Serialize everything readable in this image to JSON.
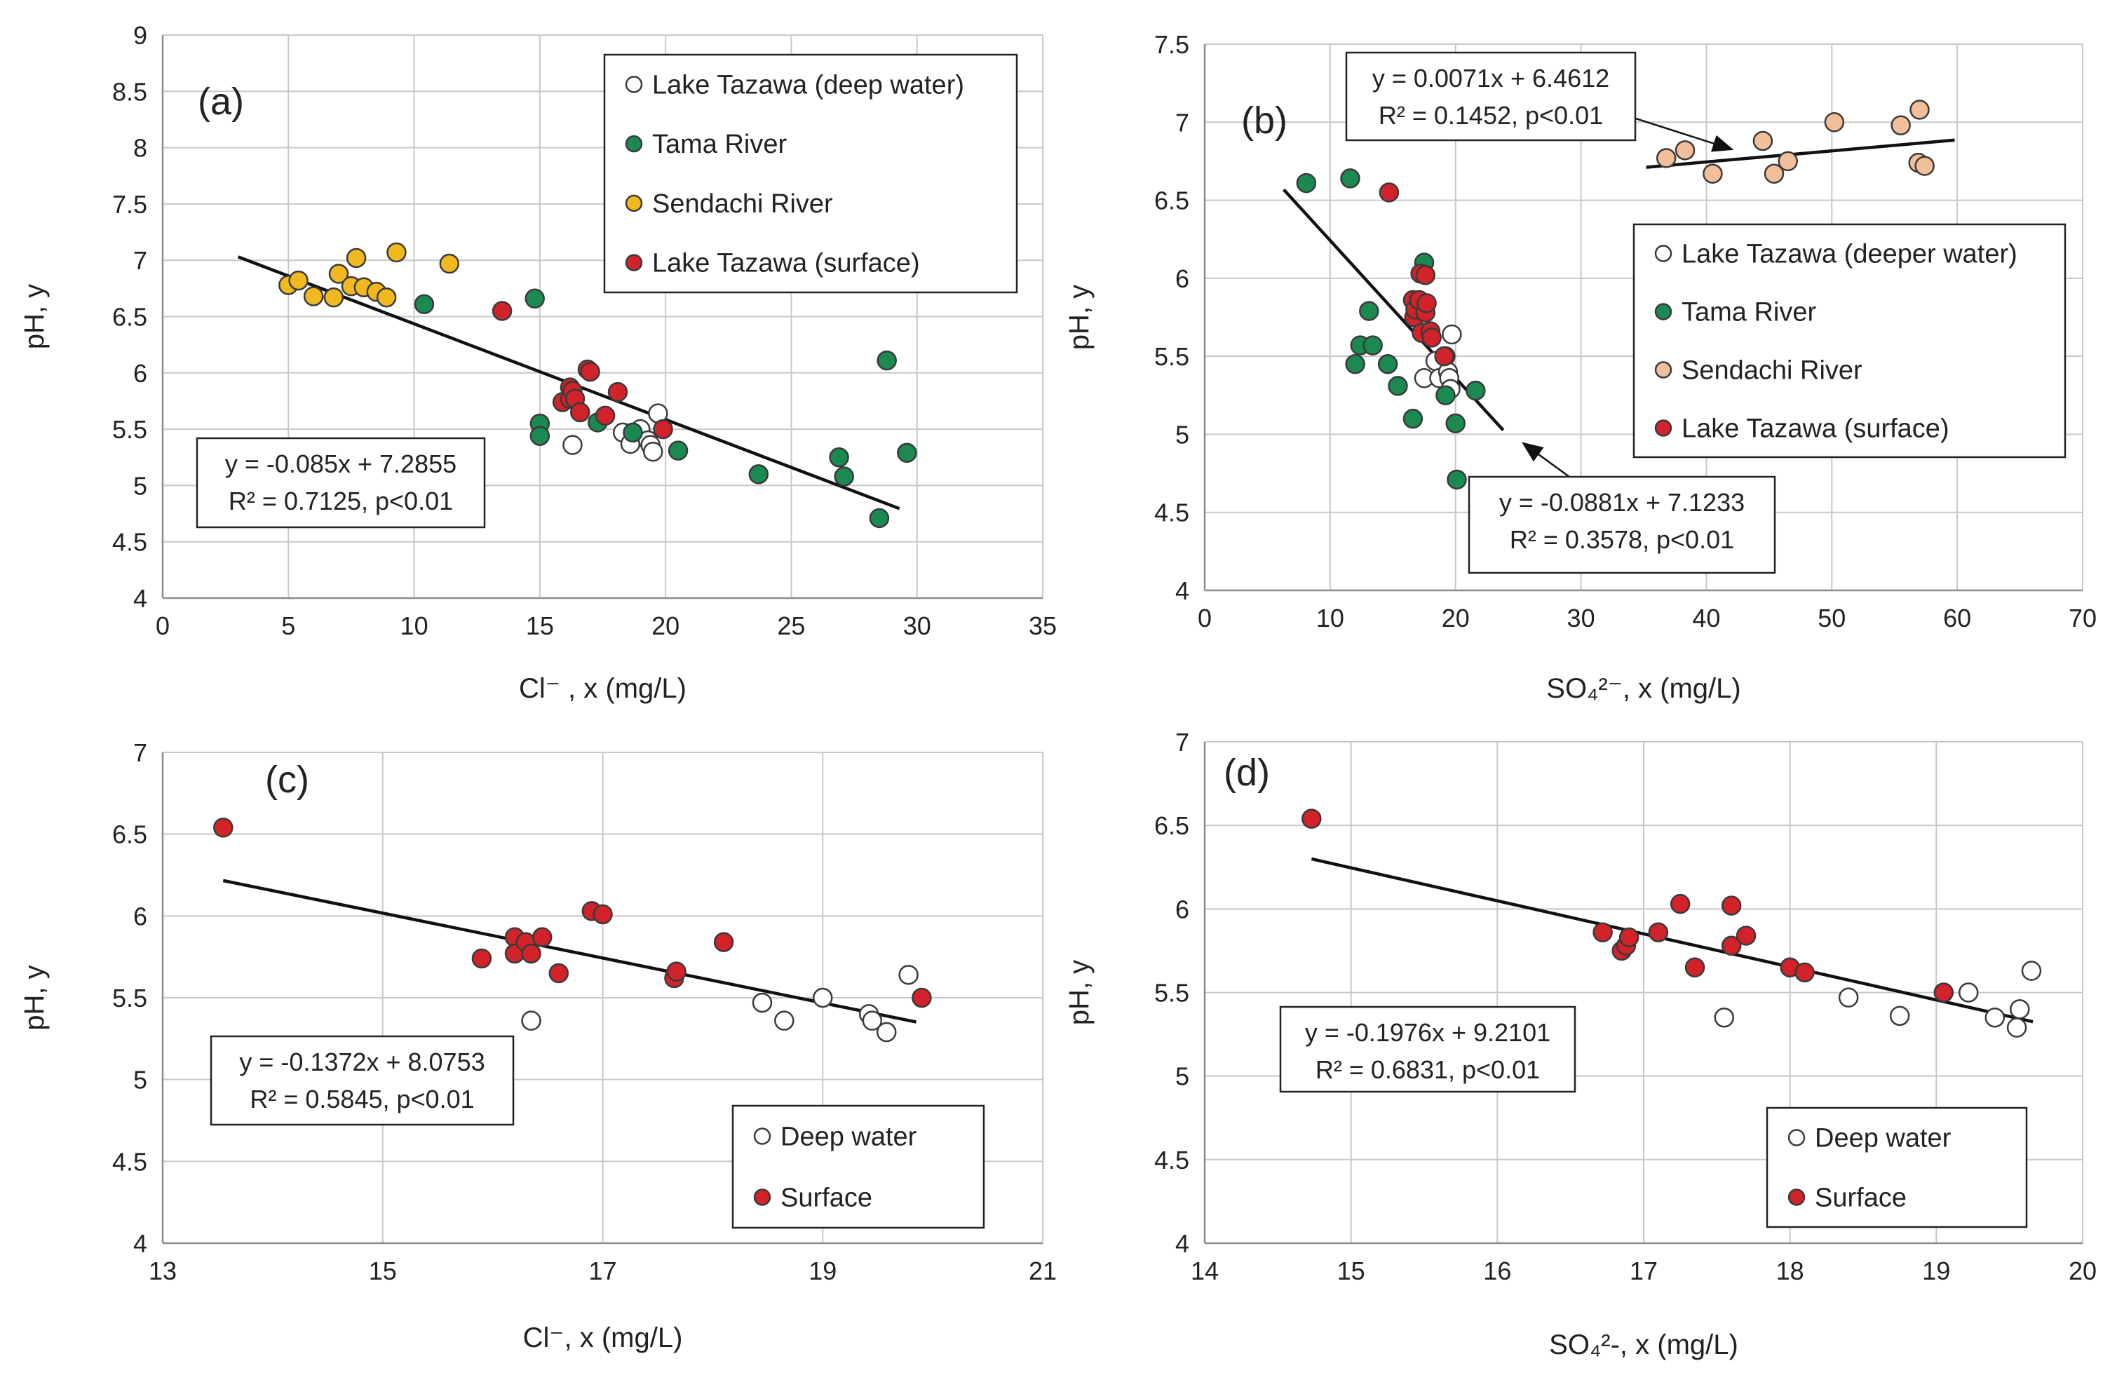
{
  "chart_data": [
    {
      "id": "a",
      "type": "scatter",
      "panel_label": "(a)",
      "xlabel": "Cl⁻ , x (mg/L)",
      "ylabel": "pH, y",
      "xlim": [
        0,
        35
      ],
      "ylim": [
        4,
        9
      ],
      "xticks": [
        0,
        5,
        10,
        15,
        20,
        25,
        30,
        35
      ],
      "yticks": [
        4,
        4.5,
        5,
        5.5,
        6,
        6.5,
        7,
        7.5,
        8,
        8.5,
        9
      ],
      "xtick_labels": [
        "0",
        "5",
        "10",
        "15",
        "20",
        "25",
        "30",
        "35"
      ],
      "ytick_labels": [
        "4",
        "4.5",
        "5",
        "5.5",
        "6",
        "6.5",
        "7",
        "7.5",
        "8",
        "8.5",
        "9"
      ],
      "series": [
        {
          "name": "Lake Tazawa (deep water)",
          "color": "#ffffff",
          "points": [
            [
              16.3,
              5.36
            ],
            [
              18.3,
              5.47
            ],
            [
              18.6,
              5.37
            ],
            [
              19.0,
              5.5
            ],
            [
              19.3,
              5.4
            ],
            [
              19.4,
              5.36
            ],
            [
              19.5,
              5.3
            ],
            [
              19.7,
              5.64
            ]
          ]
        },
        {
          "name": "Tama River",
          "color": "#1a8a50",
          "points": [
            [
              10.4,
              6.61
            ],
            [
              14.8,
              6.66
            ],
            [
              15.0,
              5.55
            ],
            [
              15.0,
              5.44
            ],
            [
              17.3,
              5.56
            ],
            [
              18.7,
              5.47
            ],
            [
              20.5,
              5.31
            ],
            [
              23.7,
              5.1
            ],
            [
              26.9,
              5.25
            ],
            [
              27.1,
              5.08
            ],
            [
              28.5,
              4.71
            ],
            [
              28.8,
              6.11
            ],
            [
              29.6,
              5.29
            ]
          ]
        },
        {
          "name": "Sendachi River",
          "color": "#f2b81f",
          "points": [
            [
              5.0,
              6.78
            ],
            [
              5.4,
              6.82
            ],
            [
              6.0,
              6.68
            ],
            [
              6.8,
              6.67
            ],
            [
              7.0,
              6.88
            ],
            [
              7.5,
              6.77
            ],
            [
              7.7,
              7.02
            ],
            [
              8.0,
              6.76
            ],
            [
              8.5,
              6.72
            ],
            [
              8.9,
              6.67
            ],
            [
              9.3,
              7.07
            ],
            [
              11.4,
              6.97
            ]
          ]
        },
        {
          "name": "Lake Tazawa (surface)",
          "color": "#d2222a",
          "points": [
            [
              13.5,
              6.55
            ],
            [
              15.9,
              5.74
            ],
            [
              16.2,
              5.87
            ],
            [
              16.2,
              5.77
            ],
            [
              16.3,
              5.84
            ],
            [
              16.4,
              5.77
            ],
            [
              16.6,
              5.65
            ],
            [
              16.9,
              6.03
            ],
            [
              17.0,
              6.01
            ],
            [
              17.6,
              5.62
            ],
            [
              18.1,
              5.83
            ],
            [
              19.9,
              5.5
            ]
          ]
        }
      ],
      "regression": {
        "x_start": 3,
        "x_end": 29.3,
        "slope": -0.085,
        "intercept": 7.2855,
        "equation": "y = -0.085x + 7.2855",
        "r2": "R² = 0.7125, p<0.01"
      }
    },
    {
      "id": "b",
      "type": "scatter",
      "panel_label": "(b)",
      "xlabel": "SO₄²⁻, x (mg/L)",
      "ylabel": "pH, y",
      "xlim": [
        0,
        70
      ],
      "ylim": [
        4,
        7.5
      ],
      "xticks": [
        0,
        10,
        20,
        30,
        40,
        50,
        60,
        70
      ],
      "yticks": [
        4,
        4.5,
        5,
        5.5,
        6,
        6.5,
        7,
        7.5
      ],
      "xtick_labels": [
        "0",
        "10",
        "20",
        "30",
        "40",
        "50",
        "60",
        "70"
      ],
      "ytick_labels": [
        "4",
        "4.5",
        "5",
        "5.5",
        "6",
        "6.5",
        "7",
        "7.5"
      ],
      "series": [
        {
          "name": "Lake Tazawa (deeper water)",
          "color": "#ffffff",
          "points": [
            [
              17.5,
              5.36
            ],
            [
              18.4,
              5.47
            ],
            [
              18.7,
              5.36
            ],
            [
              19.2,
              5.5
            ],
            [
              19.4,
              5.4
            ],
            [
              19.5,
              5.36
            ],
            [
              19.6,
              5.29
            ],
            [
              19.7,
              5.64
            ]
          ]
        },
        {
          "name": "Tama River",
          "color": "#1a8a50",
          "points": [
            [
              8.1,
              6.61
            ],
            [
              11.6,
              6.64
            ],
            [
              12.0,
              5.45
            ],
            [
              12.4,
              5.57
            ],
            [
              13.1,
              5.79
            ],
            [
              13.4,
              5.57
            ],
            [
              14.6,
              5.45
            ],
            [
              15.4,
              5.31
            ],
            [
              16.6,
              5.1
            ],
            [
              17.5,
              6.1
            ],
            [
              19.2,
              5.25
            ],
            [
              20.0,
              5.07
            ],
            [
              20.1,
              4.71
            ],
            [
              21.6,
              5.28
            ]
          ]
        },
        {
          "name": "Sendachi River",
          "color": "#f2bf9b",
          "points": [
            [
              36.8,
              6.77
            ],
            [
              38.3,
              6.82
            ],
            [
              40.5,
              6.67
            ],
            [
              44.5,
              6.88
            ],
            [
              45.4,
              6.67
            ],
            [
              46.5,
              6.75
            ],
            [
              50.2,
              7.0
            ],
            [
              55.5,
              6.98
            ],
            [
              56.9,
              6.74
            ],
            [
              57.0,
              7.08
            ],
            [
              57.4,
              6.72
            ]
          ]
        },
        {
          "name": "Lake Tazawa (surface)",
          "color": "#d2222a",
          "points": [
            [
              14.7,
              6.55
            ],
            [
              16.6,
              5.86
            ],
            [
              16.7,
              5.75
            ],
            [
              16.8,
              5.8
            ],
            [
              17.1,
              5.86
            ],
            [
              17.2,
              6.03
            ],
            [
              17.3,
              5.65
            ],
            [
              17.6,
              6.02
            ],
            [
              17.6,
              5.78
            ],
            [
              17.7,
              5.84
            ],
            [
              18.0,
              5.66
            ],
            [
              18.1,
              5.62
            ],
            [
              19.1,
              5.5
            ]
          ]
        }
      ],
      "regressions": [
        {
          "x_start": 6.3,
          "x_end": 23.8,
          "slope": -0.0881,
          "intercept": 7.1233,
          "equation": "y = -0.0881x + 7.1233",
          "r2": "R² = 0.3578, p<0.01"
        },
        {
          "x_start": 35.2,
          "x_end": 59.8,
          "slope": 0.0071,
          "intercept": 6.4612,
          "equation": "y = 0.0071x + 6.4612",
          "r2": "R² = 0.1452, p<0.01"
        }
      ]
    },
    {
      "id": "c",
      "type": "scatter",
      "panel_label": "(c)",
      "xlabel": "Cl⁻, x (mg/L)",
      "ylabel": "pH, y",
      "xlim": [
        13,
        21
      ],
      "ylim": [
        4,
        7
      ],
      "xticks": [
        13,
        15,
        17,
        19,
        21
      ],
      "yticks": [
        4,
        4.5,
        5,
        5.5,
        6,
        6.5,
        7
      ],
      "xtick_labels": [
        "13",
        "15",
        "17",
        "19",
        "21"
      ],
      "ytick_labels": [
        "4",
        "4.5",
        "5",
        "5.5",
        "6",
        "6.5",
        "7"
      ],
      "series": [
        {
          "name": "Deep water",
          "color": "#ffffff",
          "points": [
            [
              16.35,
              5.36
            ],
            [
              18.45,
              5.47
            ],
            [
              18.65,
              5.36
            ],
            [
              19.0,
              5.5
            ],
            [
              19.42,
              5.4
            ],
            [
              19.45,
              5.36
            ],
            [
              19.58,
              5.29
            ],
            [
              19.78,
              5.64
            ]
          ]
        },
        {
          "name": "Surface",
          "color": "#d2222a",
          "points": [
            [
              13.55,
              6.54
            ],
            [
              15.9,
              5.74
            ],
            [
              16.2,
              5.87
            ],
            [
              16.2,
              5.77
            ],
            [
              16.3,
              5.84
            ],
            [
              16.35,
              5.77
            ],
            [
              16.45,
              5.87
            ],
            [
              16.6,
              5.65
            ],
            [
              16.9,
              6.03
            ],
            [
              17.0,
              6.01
            ],
            [
              17.65,
              5.62
            ],
            [
              17.67,
              5.66
            ],
            [
              18.1,
              5.84
            ],
            [
              19.9,
              5.5
            ]
          ]
        }
      ],
      "regression": {
        "x_start": 13.55,
        "x_end": 19.85,
        "slope": -0.1372,
        "intercept": 8.0753,
        "equation": "y = -0.1372x + 8.0753",
        "r2": "R² = 0.5845, p<0.01"
      }
    },
    {
      "id": "d",
      "type": "scatter",
      "panel_label": "(d)",
      "xlabel": "SO₄²-, x (mg/L)",
      "ylabel": "pH, y",
      "xlim": [
        14,
        20
      ],
      "ylim": [
        4,
        7
      ],
      "xticks": [
        14,
        15,
        16,
        17,
        18,
        19,
        20
      ],
      "yticks": [
        4,
        4.5,
        5,
        5.5,
        6,
        6.5,
        7
      ],
      "xtick_labels": [
        "14",
        "15",
        "16",
        "17",
        "18",
        "19",
        "20"
      ],
      "ytick_labels": [
        "4",
        "4.5",
        "5",
        "5.5",
        "6",
        "6.5",
        "7"
      ],
      "series": [
        {
          "name": "Deep water",
          "color": "#ffffff",
          "points": [
            [
              17.55,
              5.35
            ],
            [
              18.4,
              5.47
            ],
            [
              18.75,
              5.36
            ],
            [
              19.22,
              5.5
            ],
            [
              19.4,
              5.35
            ],
            [
              19.55,
              5.29
            ],
            [
              19.57,
              5.4
            ],
            [
              19.65,
              5.63
            ]
          ]
        },
        {
          "name": "Surface",
          "color": "#d2222a",
          "points": [
            [
              14.73,
              6.54
            ],
            [
              16.72,
              5.86
            ],
            [
              16.85,
              5.75
            ],
            [
              16.88,
              5.78
            ],
            [
              16.9,
              5.83
            ],
            [
              17.1,
              5.86
            ],
            [
              17.25,
              6.03
            ],
            [
              17.35,
              5.65
            ],
            [
              17.6,
              5.78
            ],
            [
              17.6,
              6.02
            ],
            [
              17.7,
              5.84
            ],
            [
              18.0,
              5.65
            ],
            [
              18.1,
              5.62
            ],
            [
              19.05,
              5.5
            ]
          ]
        }
      ],
      "regression": {
        "x_start": 14.73,
        "x_end": 19.66,
        "slope": -0.1976,
        "intercept": 9.2101,
        "equation": "y = -0.1976x + 9.2101",
        "r2": "R² = 0.6831, p<0.01"
      }
    }
  ]
}
